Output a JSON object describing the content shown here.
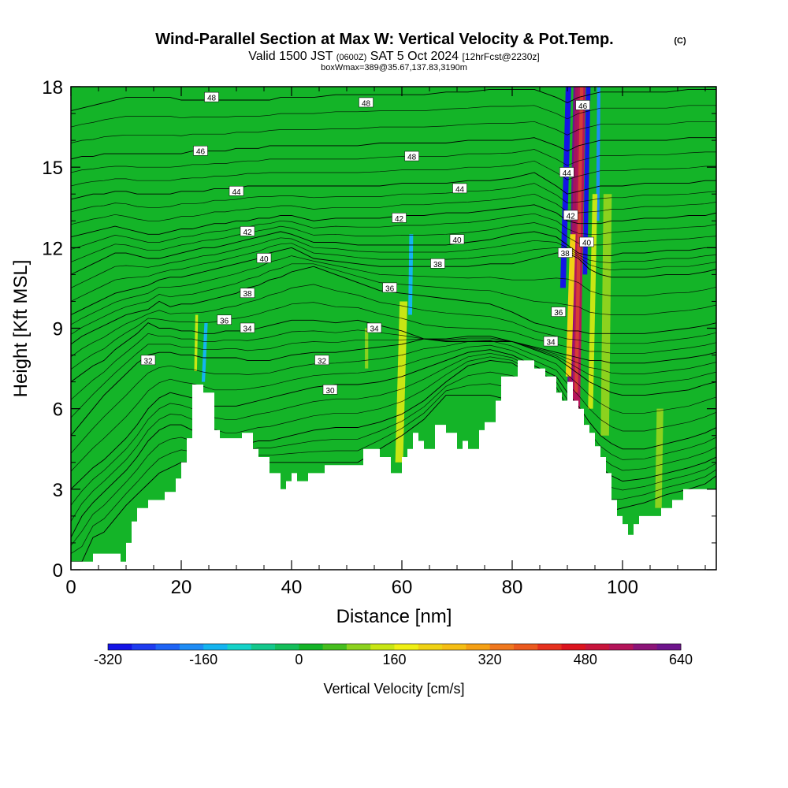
{
  "chart_data": {
    "type": "heatmap",
    "title": "Wind-Parallel Section at Max W: Vertical Velocity & Pot.Temp.",
    "title_mark": "(C)",
    "subtitle_parts": [
      "Valid 1500 JST",
      "(0600Z)",
      "SAT 5 Oct 2024",
      "[12hrFcst@2230z]"
    ],
    "subtitle2": "boxWmax=389@35.67,137.83,3190m",
    "xlabel": "Distance [nm]",
    "ylabel": "Height [Kft MSL]",
    "xlim": [
      0,
      117
    ],
    "ylim": [
      0,
      18
    ],
    "x_ticks": [
      0,
      20,
      40,
      60,
      80,
      100
    ],
    "y_ticks": [
      0,
      3,
      6,
      9,
      12,
      15,
      18
    ],
    "colorbar": {
      "label": "Vertical Velocity [cm/s]",
      "min": -320,
      "max": 640,
      "tick_values": [
        -320,
        -160,
        0,
        160,
        320,
        480,
        640
      ],
      "colors": [
        "#1414e6",
        "#1e3cf0",
        "#1e64f5",
        "#1e8cf5",
        "#14b4f0",
        "#14d2c8",
        "#14c88c",
        "#14be5a",
        "#14b428",
        "#46be1e",
        "#8cd21e",
        "#c8e614",
        "#f0f014",
        "#f0d214",
        "#f5be14",
        "#f5a014",
        "#f0781e",
        "#eb5a1e",
        "#e6321e",
        "#dc141e",
        "#c8143c",
        "#b4145a",
        "#8c1478",
        "#6e148c"
      ]
    },
    "background_w": 0,
    "terrain": [
      [
        0,
        0.3
      ],
      [
        4,
        0.3
      ],
      [
        4,
        0.6
      ],
      [
        9,
        0.6
      ],
      [
        9,
        0.3
      ],
      [
        10,
        0.3
      ],
      [
        10,
        1
      ],
      [
        11,
        1
      ],
      [
        11,
        1.8
      ],
      [
        12,
        1.8
      ],
      [
        12,
        2.3
      ],
      [
        14,
        2.3
      ],
      [
        14,
        2.6
      ],
      [
        17,
        2.6
      ],
      [
        17,
        2.9
      ],
      [
        19,
        2.9
      ],
      [
        19,
        3.4
      ],
      [
        20,
        3.4
      ],
      [
        20,
        4
      ],
      [
        21,
        4
      ],
      [
        21,
        4.9
      ],
      [
        22,
        4.9
      ],
      [
        22,
        6.9
      ],
      [
        24,
        6.9
      ],
      [
        24,
        6.6
      ],
      [
        26,
        6.6
      ],
      [
        26,
        5.2
      ],
      [
        27,
        5.2
      ],
      [
        27,
        4.9
      ],
      [
        31,
        4.9
      ],
      [
        31,
        5.1
      ],
      [
        33,
        5.1
      ],
      [
        33,
        4.5
      ],
      [
        34,
        4.5
      ],
      [
        34,
        4.2
      ],
      [
        36,
        4.2
      ],
      [
        36,
        3.6
      ],
      [
        38,
        3.6
      ],
      [
        38,
        3.0
      ],
      [
        39,
        3.0
      ],
      [
        39,
        3.3
      ],
      [
        40,
        3.3
      ],
      [
        40,
        3.6
      ],
      [
        41,
        3.6
      ],
      [
        41,
        3.3
      ],
      [
        43,
        3.3
      ],
      [
        43,
        3.6
      ],
      [
        46,
        3.6
      ],
      [
        46,
        3.9
      ],
      [
        53,
        3.9
      ],
      [
        53,
        4.5
      ],
      [
        56,
        4.5
      ],
      [
        56,
        4.2
      ],
      [
        58,
        4.2
      ],
      [
        58,
        3.6
      ],
      [
        60,
        3.6
      ],
      [
        60,
        4.2
      ],
      [
        61,
        4.2
      ],
      [
        61,
        4.5
      ],
      [
        62,
        4.5
      ],
      [
        62,
        5.1
      ],
      [
        63,
        5.1
      ],
      [
        63,
        4.8
      ],
      [
        64,
        4.8
      ],
      [
        64,
        4.5
      ],
      [
        66,
        4.5
      ],
      [
        66,
        5.4
      ],
      [
        68,
        5.4
      ],
      [
        68,
        5.1
      ],
      [
        70,
        5.1
      ],
      [
        70,
        4.5
      ],
      [
        71,
        4.5
      ],
      [
        71,
        4.8
      ],
      [
        72,
        4.8
      ],
      [
        72,
        4.5
      ],
      [
        74,
        4.5
      ],
      [
        74,
        5.2
      ],
      [
        75,
        5.2
      ],
      [
        75,
        5.5
      ],
      [
        77,
        5.5
      ],
      [
        77,
        6.3
      ],
      [
        78,
        6.3
      ],
      [
        78,
        7.2
      ],
      [
        81,
        7.2
      ],
      [
        81,
        7.8
      ],
      [
        84,
        7.8
      ],
      [
        84,
        7.5
      ],
      [
        86,
        7.5
      ],
      [
        86,
        7.2
      ],
      [
        88,
        7.2
      ],
      [
        88,
        6.6
      ],
      [
        89,
        6.6
      ],
      [
        89,
        6.3
      ],
      [
        90,
        6.3
      ],
      [
        90,
        7.0
      ],
      [
        91,
        7.0
      ],
      [
        91,
        6.3
      ],
      [
        92,
        6.3
      ],
      [
        92,
        6.0
      ],
      [
        93,
        6.0
      ],
      [
        93,
        5.4
      ],
      [
        94,
        5.4
      ],
      [
        94,
        5.1
      ],
      [
        95,
        5.1
      ],
      [
        95,
        4.6
      ],
      [
        96,
        4.6
      ],
      [
        96,
        4.2
      ],
      [
        97,
        4.2
      ],
      [
        97,
        3.6
      ],
      [
        98,
        3.6
      ],
      [
        98,
        2.6
      ],
      [
        99,
        2.6
      ],
      [
        99,
        2.0
      ],
      [
        100,
        2.0
      ],
      [
        100,
        1.7
      ],
      [
        101,
        1.7
      ],
      [
        101,
        1.3
      ],
      [
        102,
        1.3
      ],
      [
        102,
        1.7
      ],
      [
        103,
        1.7
      ],
      [
        103,
        2.0
      ],
      [
        107,
        2.0
      ],
      [
        107,
        2.3
      ],
      [
        109,
        2.3
      ],
      [
        109,
        2.6
      ],
      [
        111,
        2.6
      ],
      [
        111,
        3.0
      ],
      [
        117,
        3.0
      ]
    ],
    "w_features": [
      {
        "x": 90.5,
        "y0": 5.8,
        "y1": 18,
        "w": 640,
        "width": 1.2,
        "lean": 1.2
      },
      {
        "x": 91.6,
        "y0": 6.0,
        "y1": 18,
        "w": 520,
        "width": 1.4,
        "lean": 1.0
      },
      {
        "x": 90.2,
        "y0": 7.2,
        "y1": 12.5,
        "w": 200,
        "width": 1.0,
        "lean": 0.8
      },
      {
        "x": 89.2,
        "y0": 10.5,
        "y1": 18,
        "w": -320,
        "width": 1.0,
        "lean": 1.0
      },
      {
        "x": 93.2,
        "y0": 11,
        "y1": 18,
        "w": -300,
        "width": 0.8,
        "lean": 0.6
      },
      {
        "x": 95.5,
        "y0": 13,
        "y1": 18,
        "w": -200,
        "width": 0.6,
        "lean": 0.2
      },
      {
        "x": 94.2,
        "y0": 6,
        "y1": 14,
        "w": 150,
        "width": 0.9,
        "lean": 0.8
      },
      {
        "x": 96.8,
        "y0": 5,
        "y1": 14,
        "w": 90,
        "width": 1.5,
        "lean": 0.5
      },
      {
        "x": 59.5,
        "y0": 4,
        "y1": 10,
        "w": 130,
        "width": 1.4,
        "lean": 0.8
      },
      {
        "x": 61.5,
        "y0": 9.5,
        "y1": 12.5,
        "w": -130,
        "width": 0.7,
        "lean": 0.2
      },
      {
        "x": 24,
        "y0": 7,
        "y1": 9.2,
        "w": -160,
        "width": 0.6,
        "lean": 0.5
      },
      {
        "x": 22.6,
        "y0": 7.4,
        "y1": 9.5,
        "w": 140,
        "width": 0.5,
        "lean": 0.2
      },
      {
        "x": 106.5,
        "y0": 2.3,
        "y1": 6,
        "w": 100,
        "width": 1.2,
        "lean": 0.3
      },
      {
        "x": 53.6,
        "y0": 7.5,
        "y1": 9,
        "w": 90,
        "width": 0.6,
        "lean": 0.0
      }
    ],
    "contour_levels": [
      {
        "theta": 28,
        "h": [
          0.3,
          0.3,
          1.2,
          1.4,
          1.9,
          2.4,
          2.8,
          3.2,
          3.6,
          3.8,
          4.0,
          4.0,
          4.0,
          4.0,
          4.0,
          4.0,
          4.0,
          4.0,
          4.0,
          4.0,
          4.0,
          4.0,
          4.0,
          4.0,
          4.5,
          5.0,
          5.6,
          6.5,
          6.5,
          6.5,
          6.3,
          6.3,
          6.0,
          5.0,
          4.0,
          3.0,
          2.5,
          2.2,
          2.3,
          2.5,
          2.8,
          3.0,
          3.2,
          3.5
        ]
      },
      {
        "theta": 29,
        "h": [
          1.2,
          2.0,
          2.5,
          2.9,
          3.3,
          3.7,
          4.2,
          4.8,
          5.2,
          5.4,
          5.4,
          5.2,
          5.1,
          4.8,
          4.6,
          4.6,
          4.7,
          4.8,
          4.8,
          4.9,
          5.0,
          5.2,
          5.3,
          5.3,
          5.5,
          5.8,
          6.3,
          7.0,
          7.6,
          7.8,
          7.7,
          7.2,
          6.6,
          5.8,
          5.0,
          4.3,
          3.8,
          3.5,
          3.3,
          3.4,
          3.6,
          3.8,
          4.0,
          4.2
        ]
      },
      {
        "theta": 30,
        "h": [
          3.0,
          3.4,
          3.8,
          4.1,
          4.5,
          4.9,
          5.4,
          6.0,
          6.4,
          6.6,
          6.5,
          6.4,
          6.3,
          6.1,
          6.1,
          6.1,
          6.2,
          6.3,
          6.4,
          6.5,
          6.6,
          6.8,
          6.9,
          6.9,
          7.0,
          7.2,
          7.5,
          7.8,
          8.1,
          8.2,
          8.0,
          7.6,
          7.2,
          6.6,
          6.1,
          5.5,
          5.0,
          4.7,
          4.5,
          4.5,
          4.7,
          4.9,
          5.1,
          5.3
        ]
      },
      {
        "theta": 32,
        "h": [
          5.0,
          5.5,
          6.0,
          6.5,
          6.9,
          7.3,
          7.7,
          8.0,
          8.1,
          8.1,
          8.0,
          8.0,
          7.9,
          7.9,
          7.9,
          7.9,
          7.8,
          7.8,
          7.8,
          7.9,
          8.0,
          8.1,
          8.1,
          8.2,
          8.3,
          8.4,
          8.6,
          8.6,
          8.7,
          8.7,
          8.5,
          8.2,
          7.9,
          7.6,
          7.3,
          7.0,
          6.8,
          6.6,
          6.5,
          6.5,
          6.6,
          6.7,
          6.9,
          7.0
        ]
      },
      {
        "theta": 34,
        "h": [
          7.0,
          7.3,
          7.6,
          7.8,
          8.2,
          8.5,
          8.8,
          9.2,
          9.0,
          9.0,
          8.9,
          8.9,
          8.8,
          8.8,
          8.9,
          8.9,
          8.9,
          9.0,
          9.1,
          9.2,
          9.3,
          9.3,
          9.2,
          9.3,
          9.1,
          8.9,
          8.6,
          8.5,
          8.5,
          8.5,
          8.5,
          8.3,
          8.1,
          8.0,
          7.9,
          7.8,
          7.8,
          7.7,
          7.7,
          7.7,
          7.8,
          7.9,
          8.0,
          8.1
        ]
      },
      {
        "theta": 36,
        "h": [
          8.4,
          8.7,
          8.9,
          9.1,
          9.3,
          9.5,
          9.6,
          9.7,
          10.0,
          9.8,
          9.9,
          9.9,
          10.0,
          10.1,
          10.2,
          10.3,
          10.5,
          10.6,
          10.8,
          10.9,
          11.1,
          11.3,
          11.0,
          10.7,
          10.4,
          10.3,
          10.2,
          10.1,
          10.0,
          9.9,
          9.6,
          9.2,
          9.0,
          8.9,
          8.9,
          8.8,
          8.8,
          8.8,
          8.8,
          8.8,
          8.9,
          9.0,
          9.1,
          9.2
        ]
      },
      {
        "theta": 38,
        "h": [
          9.5,
          9.7,
          9.9,
          10.1,
          10.3,
          10.4,
          10.5,
          10.6,
          10.8,
          10.9,
          10.9,
          11.0,
          11.1,
          11.2,
          11.3,
          11.4,
          11.5,
          11.6,
          11.8,
          11.9,
          12.0,
          11.6,
          11.5,
          11.4,
          11.3,
          11.3,
          11.3,
          11.3,
          11.3,
          11.4,
          11.4,
          11.6,
          11.8,
          11.8,
          11.6,
          11.2,
          11.0,
          10.9,
          10.9,
          10.9,
          11.0,
          11.0,
          11.1,
          11.2
        ]
      },
      {
        "theta": 40,
        "h": [
          11.0,
          11.2,
          11.4,
          11.6,
          11.8,
          11.8,
          11.7,
          11.6,
          11.6,
          11.7,
          11.8,
          11.9,
          12.0,
          12.0,
          12.1,
          12.2,
          12.3,
          12.4,
          12.5,
          12.6,
          12.5,
          12.2,
          12.2,
          12.1,
          12.1,
          12.1,
          12.1,
          12.1,
          12.2,
          12.3,
          12.5,
          12.6,
          12.4,
          12.1,
          11.8,
          11.7,
          11.7,
          11.7,
          11.8,
          11.8,
          11.9,
          11.9,
          12.0,
          12.0
        ]
      },
      {
        "theta": 42,
        "h": [
          12.4,
          12.5,
          12.6,
          12.7,
          12.8,
          12.7,
          12.6,
          12.5,
          12.5,
          12.6,
          12.7,
          12.7,
          12.8,
          12.9,
          12.9,
          13.0,
          13.0,
          13.1,
          13.1,
          13.2,
          13.2,
          13.0,
          13.1,
          13.1,
          13.1,
          13.2,
          13.2,
          13.3,
          13.3,
          13.4,
          13.5,
          13.6,
          13.3,
          13.0,
          12.9,
          12.9,
          12.9,
          13.0,
          13.0,
          13.1,
          13.1,
          13.2,
          13.2,
          13.3
        ]
      },
      {
        "theta": 44,
        "h": [
          13.8,
          13.9,
          14.0,
          14.0,
          14.1,
          14.1,
          14.0,
          14.0,
          14.0,
          14.0,
          14.1,
          14.1,
          14.1,
          14.2,
          14.2,
          14.2,
          14.3,
          14.3,
          14.3,
          14.3,
          14.3,
          14.3,
          14.3,
          14.3,
          14.3,
          14.4,
          14.4,
          14.4,
          14.5,
          14.5,
          14.6,
          14.8,
          14.3,
          14.0,
          14.1,
          14.2,
          14.3,
          14.3,
          14.3,
          14.4,
          14.4,
          14.4,
          14.5,
          14.5
        ]
      },
      {
        "theta": 46,
        "h": [
          15.3,
          15.4,
          15.4,
          15.5,
          15.5,
          15.5,
          15.5,
          15.5,
          15.5,
          15.5,
          15.5,
          15.6,
          15.6,
          15.6,
          15.6,
          15.7,
          15.7,
          15.7,
          15.8,
          15.8,
          15.8,
          15.8,
          15.8,
          15.8,
          15.9,
          15.9,
          15.9,
          15.9,
          16.0,
          16.0,
          16.0,
          16.1,
          15.8,
          15.6,
          15.8,
          15.9,
          16.0,
          16.0,
          16.0,
          16.0,
          16.0,
          16.1,
          16.1,
          16.1
        ]
      },
      {
        "theta": 48,
        "h": [
          17.1,
          17.2,
          17.3,
          17.4,
          17.5,
          17.6,
          17.6,
          17.6,
          17.6,
          17.6,
          17.5,
          17.5,
          17.5,
          17.5,
          17.5,
          17.5,
          17.5,
          17.5,
          17.5,
          17.6,
          17.6,
          17.6,
          17.7,
          17.7,
          17.7,
          17.7,
          17.7,
          17.8,
          17.8,
          17.9,
          17.9,
          17.9,
          17.6,
          17.4,
          17.6,
          17.7,
          17.8,
          17.8,
          17.8,
          17.8,
          17.8,
          17.9,
          17.9,
          17.9
        ]
      }
    ],
    "contour_x": [
      0,
      2,
      4,
      6,
      8,
      10,
      12,
      14,
      16,
      18,
      20,
      22,
      24,
      26,
      28,
      30,
      32,
      34,
      36,
      38,
      40,
      44,
      48,
      52,
      56,
      60,
      64,
      68,
      72,
      76,
      80,
      84,
      88,
      90,
      92,
      94,
      96,
      98,
      100,
      104,
      108,
      112,
      115,
      117
    ],
    "extra_contour_count": 2,
    "contour_labels": [
      {
        "text": "48",
        "x": 25.5,
        "y": 17.6
      },
      {
        "text": "48",
        "x": 53.5,
        "y": 17.4
      },
      {
        "text": "48",
        "x": 61.8,
        "y": 15.4
      },
      {
        "text": "46",
        "x": 23.5,
        "y": 15.6
      },
      {
        "text": "46",
        "x": 92.8,
        "y": 17.3
      },
      {
        "text": "44",
        "x": 30.0,
        "y": 14.1
      },
      {
        "text": "44",
        "x": 70.5,
        "y": 14.2
      },
      {
        "text": "44",
        "x": 89.9,
        "y": 14.8
      },
      {
        "text": "42",
        "x": 32.0,
        "y": 12.6
      },
      {
        "text": "42",
        "x": 59.5,
        "y": 13.1
      },
      {
        "text": "42",
        "x": 90.6,
        "y": 13.2
      },
      {
        "text": "40",
        "x": 35.0,
        "y": 11.6
      },
      {
        "text": "40",
        "x": 70.0,
        "y": 12.3
      },
      {
        "text": "40",
        "x": 93.5,
        "y": 12.2
      },
      {
        "text": "38",
        "x": 32.0,
        "y": 10.3
      },
      {
        "text": "38",
        "x": 66.5,
        "y": 11.4
      },
      {
        "text": "38",
        "x": 89.6,
        "y": 11.8
      },
      {
        "text": "36",
        "x": 27.8,
        "y": 9.3
      },
      {
        "text": "36",
        "x": 57.8,
        "y": 10.5
      },
      {
        "text": "36",
        "x": 88.4,
        "y": 9.6
      },
      {
        "text": "34",
        "x": 32.0,
        "y": 9.0
      },
      {
        "text": "34",
        "x": 55.0,
        "y": 9.0
      },
      {
        "text": "34",
        "x": 87.0,
        "y": 8.5
      },
      {
        "text": "32",
        "x": 14.0,
        "y": 7.8
      },
      {
        "text": "32",
        "x": 45.5,
        "y": 7.8
      },
      {
        "text": "30",
        "x": 47.0,
        "y": 6.7
      }
    ]
  }
}
